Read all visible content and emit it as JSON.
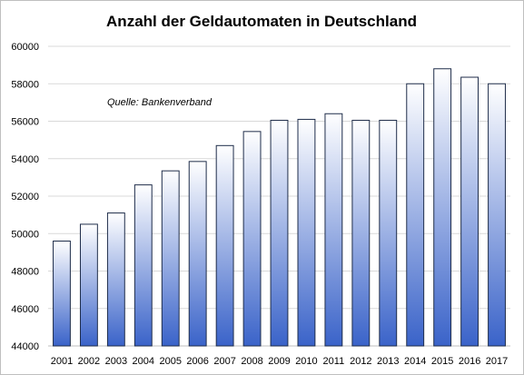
{
  "chart_data": {
    "type": "bar",
    "title": "Anzahl der Geldautomaten in Deutschland",
    "annotation": "Quelle: Bankenverband",
    "xlabel": "",
    "ylabel": "",
    "categories": [
      "2001",
      "2002",
      "2003",
      "2004",
      "2005",
      "2006",
      "2007",
      "2008",
      "2009",
      "2010",
      "2011",
      "2012",
      "2013",
      "2014",
      "2015",
      "2016",
      "2017"
    ],
    "values": [
      49600,
      50500,
      51100,
      52600,
      53350,
      53850,
      54700,
      55450,
      56050,
      56100,
      56400,
      56050,
      56050,
      58000,
      58800,
      58350,
      58000
    ],
    "ylim": [
      44000,
      60000
    ],
    "yticks": [
      44000,
      46000,
      48000,
      50000,
      52000,
      54000,
      56000,
      58000,
      60000
    ],
    "grid": true,
    "legend": "none",
    "bar_gradient": [
      "#ffffff",
      "#3a63c9"
    ],
    "bar_outline": "#1f2d4a"
  }
}
